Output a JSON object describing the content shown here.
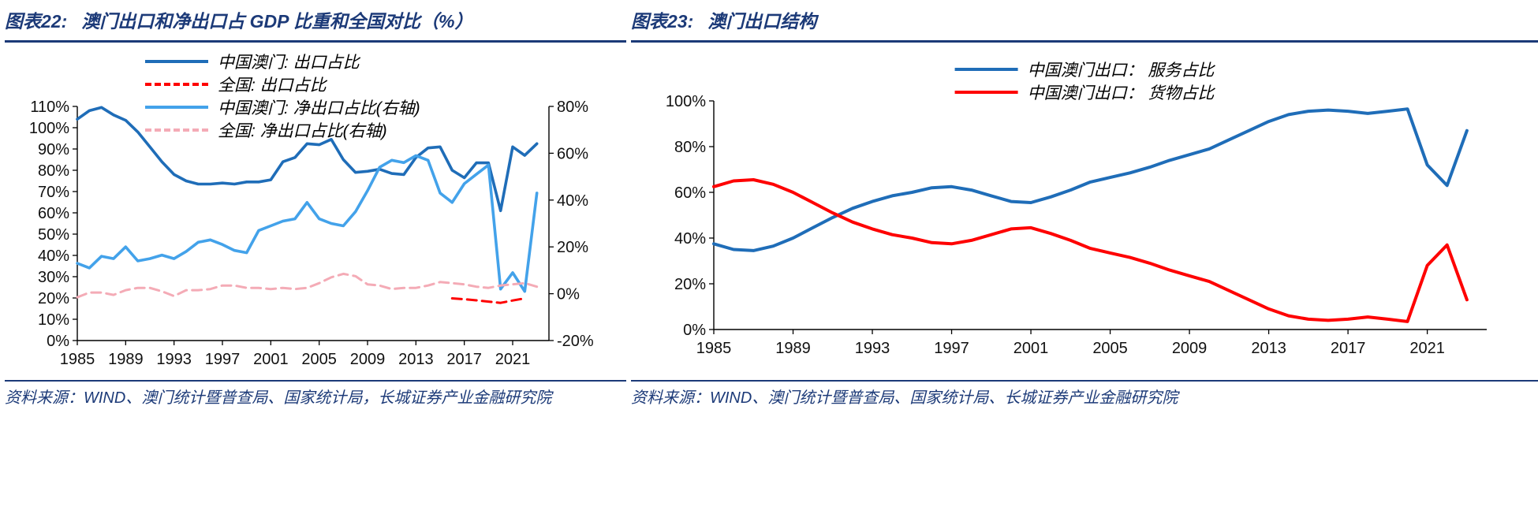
{
  "colors": {
    "navy": "#1c3a78",
    "macau_blue": "#1f6db8",
    "china_red": "#fe0000",
    "net_light_blue": "#43a2ea",
    "china_pink": "#f4abb6"
  },
  "figures": [
    {
      "label": "图表22:",
      "title": "澳门出口和净出口占 GDP 比重和全国对比（%）",
      "source": "资料来源：WIND、澳门统计暨普查局、国家统计局，长城证券产业金融研究院"
    },
    {
      "label": "图表23:",
      "title": "澳门出口结构",
      "source": "资料来源：WIND、澳门统计暨普查局、国家统计局、长城证券产业金融研究院"
    }
  ],
  "chart_data": [
    {
      "type": "line",
      "title": "澳门出口和净出口占 GDP 比重和全国对比（%）",
      "x_min": 1985,
      "x_max": 2024,
      "x_ticks": [
        1985,
        1989,
        1993,
        1997,
        2001,
        2005,
        2009,
        2013,
        2017,
        2021
      ],
      "y_left": {
        "min": 0,
        "max": 110,
        "step": 10,
        "suffix": "%"
      },
      "y_right": {
        "min": -20,
        "max": 80,
        "step": 20,
        "suffix": "%"
      },
      "grid": false,
      "legend_position": "top-left",
      "years": [
        1985,
        1986,
        1987,
        1988,
        1989,
        1990,
        1991,
        1992,
        1993,
        1994,
        1995,
        1996,
        1997,
        1998,
        1999,
        2000,
        2001,
        2002,
        2003,
        2004,
        2005,
        2006,
        2007,
        2008,
        2009,
        2010,
        2011,
        2012,
        2013,
        2014,
        2015,
        2016,
        2017,
        2018,
        2019,
        2020,
        2021,
        2022,
        2023
      ],
      "series": [
        {
          "name": "中国澳门: 出口占比",
          "axis": "left",
          "color": "#1f6db8",
          "dash": null,
          "values": [
            104,
            108,
            109.5,
            106,
            103.5,
            98,
            91,
            84,
            78,
            75,
            73.5,
            73.5,
            74,
            73.5,
            74.5,
            74.5,
            75.5,
            84,
            86,
            92.5,
            92,
            94.5,
            85,
            79,
            79.5,
            80.5,
            78.5,
            78,
            86,
            90.5,
            91,
            80,
            76.5,
            83.5,
            83.5,
            61,
            91,
            87,
            92.5
          ]
        },
        {
          "name": "全国: 出口占比",
          "axis": "left",
          "color": "#fe0000",
          "dash": "12 7",
          "values": [
            null,
            null,
            null,
            null,
            null,
            null,
            null,
            null,
            null,
            null,
            null,
            null,
            null,
            null,
            null,
            null,
            null,
            null,
            null,
            null,
            null,
            null,
            null,
            null,
            null,
            null,
            null,
            null,
            null,
            null,
            null,
            19.8,
            19.4,
            18.9,
            18.3,
            17.7,
            18.8,
            19.8,
            null
          ]
        },
        {
          "name": "中国澳门: 净出口占比(右轴)",
          "axis": "right",
          "color": "#43a2ea",
          "dash": null,
          "values": [
            13,
            11,
            16,
            15,
            20,
            14,
            15,
            16.5,
            15,
            18,
            22,
            23,
            21,
            18.5,
            17.5,
            27,
            29,
            31,
            32,
            39,
            32,
            30,
            29,
            35,
            44,
            54,
            57,
            56,
            59,
            57,
            43,
            39,
            47,
            51,
            55,
            2,
            9,
            1,
            43
          ]
        },
        {
          "name": "全国: 净出口占比(右轴)",
          "axis": "right",
          "color": "#f4abb6",
          "dash": "12 7",
          "values": [
            -1.5,
            0.5,
            0.5,
            -0.5,
            1.5,
            2.5,
            2.5,
            1,
            -1,
            1.5,
            1.5,
            2,
            3.5,
            3.5,
            2.5,
            2.5,
            2,
            2.5,
            2,
            2.5,
            4.5,
            7,
            8.5,
            7.5,
            4,
            3.5,
            2,
            2.5,
            2.5,
            3.5,
            5,
            4.5,
            4,
            3,
            2.5,
            3.5,
            4,
            4.5,
            3
          ]
        }
      ]
    },
    {
      "type": "line",
      "title": "澳门出口结构",
      "x_min": 1985,
      "x_max": 2024,
      "x_ticks": [
        1985,
        1989,
        1993,
        1997,
        2001,
        2005,
        2009,
        2013,
        2017,
        2021
      ],
      "y_left": {
        "min": 0,
        "max": 100,
        "step": 20,
        "suffix": "%"
      },
      "y_right": null,
      "grid": false,
      "legend_position": "top-center",
      "years": [
        1985,
        1986,
        1987,
        1988,
        1989,
        1990,
        1991,
        1992,
        1993,
        1994,
        1995,
        1996,
        1997,
        1998,
        1999,
        2000,
        2001,
        2002,
        2003,
        2004,
        2005,
        2006,
        2007,
        2008,
        2009,
        2010,
        2011,
        2012,
        2013,
        2014,
        2015,
        2016,
        2017,
        2018,
        2019,
        2020,
        2021,
        2022,
        2023
      ],
      "series": [
        {
          "name": "中国澳门出口： 服务占比",
          "axis": "left",
          "color": "#1f6db8",
          "dash": null,
          "values": [
            37.5,
            35,
            34.5,
            36.5,
            40,
            44.5,
            49,
            53,
            56,
            58.5,
            60,
            62,
            62.5,
            61,
            58.5,
            56,
            55.5,
            58,
            61,
            64.5,
            66.5,
            68.5,
            71,
            74,
            76.5,
            79,
            83,
            87,
            91,
            94,
            95.5,
            96,
            95.5,
            94.5,
            95.5,
            96.5,
            72,
            63,
            87
          ]
        },
        {
          "name": "中国澳门出口： 货物占比",
          "axis": "left",
          "color": "#fe0000",
          "dash": null,
          "values": [
            62.5,
            65,
            65.5,
            63.5,
            60,
            55.5,
            51,
            47,
            44,
            41.5,
            40,
            38,
            37.5,
            39,
            41.5,
            44,
            44.5,
            42,
            39,
            35.5,
            33.5,
            31.5,
            29,
            26,
            23.5,
            21,
            17,
            13,
            9,
            6,
            4.5,
            4,
            4.5,
            5.5,
            4.5,
            3.5,
            28,
            37,
            13
          ]
        }
      ]
    }
  ]
}
